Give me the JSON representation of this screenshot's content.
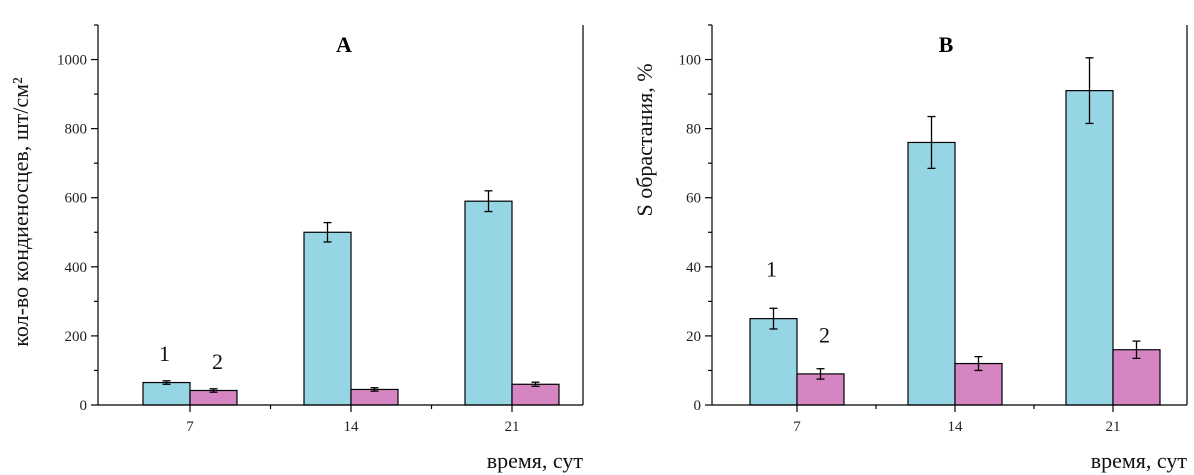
{
  "colors": {
    "series1": "#96d6e4",
    "series2": "#d585c1"
  },
  "chart_data": [
    {
      "type": "bar",
      "title": "A",
      "xlabel": "время, сут",
      "ylabel": "кол-во кондиеносцев, шт/см²",
      "categories": [
        "7",
        "14",
        "21"
      ],
      "ylim": [
        0,
        1100
      ],
      "yticks": [
        0,
        200,
        400,
        600,
        800,
        1000
      ],
      "series_labels": [
        "1",
        "2"
      ],
      "series": [
        {
          "name": "1",
          "values": [
            65,
            500,
            590
          ],
          "errors": [
            5,
            28,
            30
          ]
        },
        {
          "name": "2",
          "values": [
            42,
            45,
            60
          ],
          "errors": [
            5,
            5,
            6
          ]
        }
      ]
    },
    {
      "type": "bar",
      "title": "B",
      "xlabel": "время, сут",
      "ylabel": "S обрастания, %",
      "categories": [
        "7",
        "14",
        "21"
      ],
      "ylim": [
        0,
        110
      ],
      "yticks": [
        0,
        20,
        40,
        60,
        80,
        100
      ],
      "series_labels": [
        "1",
        "2"
      ],
      "series": [
        {
          "name": "1",
          "values": [
            25,
            76,
            91
          ],
          "errors": [
            3,
            7.5,
            9.5
          ]
        },
        {
          "name": "2",
          "values": [
            9,
            12,
            16
          ],
          "errors": [
            1.5,
            2,
            2.5
          ]
        }
      ]
    }
  ]
}
